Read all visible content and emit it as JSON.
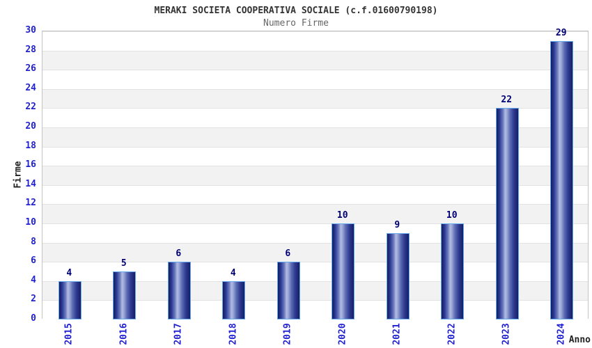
{
  "chart_data": {
    "type": "bar",
    "title": "MERAKI SOCIETA COOPERATIVA SOCIALE (c.f.01600790198)",
    "subtitle": "Numero Firme",
    "xlabel": "Anno",
    "ylabel": "Firme",
    "categories": [
      "2015",
      "2016",
      "2017",
      "2018",
      "2019",
      "2020",
      "2021",
      "2022",
      "2023",
      "2024"
    ],
    "values": [
      4,
      5,
      6,
      4,
      6,
      10,
      9,
      10,
      22,
      29
    ],
    "ylim": [
      0,
      30
    ],
    "ytick_step": 2,
    "grid": true,
    "legend": false,
    "band_colors": [
      "#ffffff",
      "#f2f2f2"
    ],
    "colors": {
      "bar_dark": "#161e66",
      "bar_highlight": "#b2bce2",
      "bar_border": "#66aaee",
      "tick_label": "#2121d1",
      "value_label": "#000075",
      "gridline": "#e2e2e2",
      "title": "#333333",
      "subtitle": "#666666",
      "axis_title": "#222222"
    }
  }
}
